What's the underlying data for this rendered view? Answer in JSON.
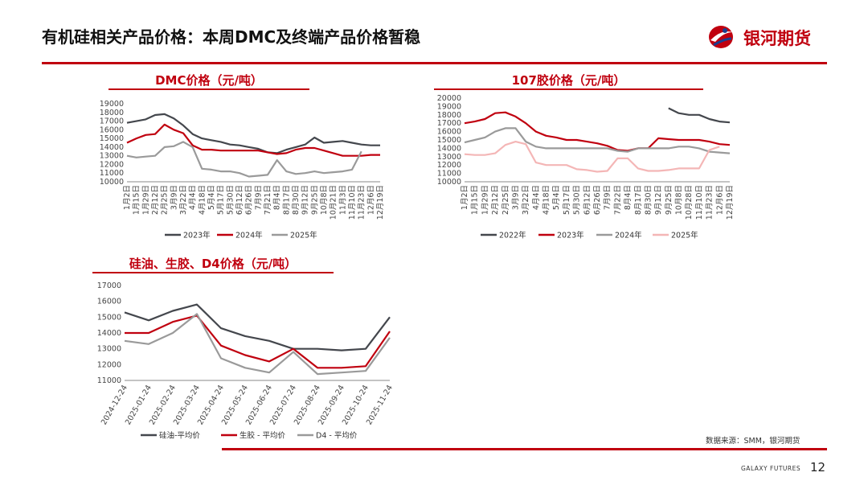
{
  "header": {
    "title": "有机硅相关产品价格：本周DMC及终端产品价格暂稳",
    "logo_text": "银河期货"
  },
  "colors": {
    "brand_red": "#c0000f",
    "dark_gray": "#44474d",
    "red": "#c0000f",
    "gray": "#9a9a9a",
    "pink": "#f4b6b6"
  },
  "footer": {
    "source": "数据来源：SMM，银河期货",
    "brand": "GALAXY FUTURES",
    "page": "12"
  },
  "chart_data": [
    {
      "id": "dmc",
      "type": "line",
      "title": "DMC价格（元/吨）",
      "ylim": [
        10000,
        19000
      ],
      "yticks": [
        10000,
        11000,
        12000,
        13000,
        14000,
        15000,
        16000,
        17000,
        18000,
        19000
      ],
      "categories": [
        "1月2日",
        "1月15日",
        "1月29日",
        "2月12日",
        "2月25日",
        "3月9日",
        "3月22日",
        "4月4日",
        "4月18日",
        "5月4日",
        "5月17日",
        "5月30日",
        "6月12日",
        "6月26日",
        "7月9日",
        "7月21日",
        "8月4日",
        "8月17日",
        "8月30日",
        "9月12日",
        "9月25日",
        "10月8日",
        "10月21日",
        "11月3日",
        "11月10日",
        "11月23日",
        "12月6日",
        "12月19日"
      ],
      "legend": [
        "2023年",
        "2024年",
        "2025年"
      ],
      "series": [
        {
          "name": "2023年",
          "color": "#44474d",
          "values": [
            16800,
            17000,
            17200,
            17700,
            17800,
            17300,
            16500,
            15500,
            15000,
            14800,
            14600,
            14300,
            14200,
            14000,
            13800,
            13400,
            13300,
            13700,
            14000,
            14300,
            15100,
            14500,
            14600,
            14700,
            14500,
            14300,
            14200,
            14200
          ]
        },
        {
          "name": "2024年",
          "color": "#c0000f",
          "values": [
            14500,
            15000,
            15400,
            15500,
            16600,
            16000,
            15600,
            14200,
            13700,
            13700,
            13600,
            13600,
            13600,
            13600,
            13600,
            13400,
            13200,
            13300,
            13700,
            13900,
            13900,
            13600,
            13300,
            13000,
            13000,
            13000,
            13100,
            13100
          ]
        },
        {
          "name": "2025年",
          "color": "#9a9a9a",
          "values": [
            13000,
            12800,
            12900,
            13000,
            14000,
            14100,
            14600,
            14000,
            11500,
            11400,
            11200,
            11200,
            11000,
            10600,
            10700,
            10800,
            12500,
            11200,
            10900,
            11000,
            11200,
            11000,
            11100,
            11200,
            11400,
            13500,
            null,
            null
          ]
        }
      ]
    },
    {
      "id": "glue107",
      "type": "line",
      "title": "107胶价格（元/吨）",
      "ylim": [
        10000,
        20000
      ],
      "yticks": [
        10000,
        11000,
        12000,
        13000,
        14000,
        15000,
        16000,
        17000,
        18000,
        19000,
        20000
      ],
      "categories": [
        "1月2日",
        "1月15日",
        "1月29日",
        "2月12日",
        "2月25日",
        "3月9日",
        "3月22日",
        "4月4日",
        "4月18日",
        "5月4日",
        "5月17日",
        "5月30日",
        "6月12日",
        "6月26日",
        "7月9日",
        "7月22日",
        "8月4日",
        "8月17日",
        "8月30日",
        "9月12日",
        "9月25日",
        "10月8日",
        "10月28日",
        "11月10日",
        "11月23日",
        "12月6日",
        "12月19日"
      ],
      "legend": [
        "2022年",
        "2023年",
        "2024年",
        "2025年"
      ],
      "series": [
        {
          "name": "2022年",
          "color": "#44474d",
          "values": [
            null,
            null,
            null,
            null,
            null,
            null,
            null,
            null,
            null,
            null,
            null,
            null,
            null,
            null,
            null,
            null,
            null,
            null,
            null,
            null,
            18800,
            18200,
            18000,
            18000,
            17500,
            17200,
            17100
          ]
        },
        {
          "name": "2023年",
          "color": "#c0000f",
          "values": [
            17000,
            17200,
            17500,
            18200,
            18300,
            17800,
            17000,
            16000,
            15500,
            15300,
            15000,
            15000,
            14800,
            14600,
            14300,
            13800,
            13700,
            14000,
            14000,
            15200,
            15100,
            15000,
            15000,
            15000,
            14800,
            14500,
            14400
          ]
        },
        {
          "name": "2024年",
          "color": "#9a9a9a",
          "values": [
            14700,
            15000,
            15300,
            16000,
            16400,
            16400,
            14800,
            14200,
            14000,
            14000,
            14000,
            14000,
            14000,
            14000,
            14000,
            13700,
            13600,
            14000,
            14000,
            14000,
            14000,
            14200,
            14200,
            14000,
            13600,
            13500,
            13400
          ]
        },
        {
          "name": "2025年",
          "color": "#f4b6b6",
          "values": [
            13300,
            13200,
            13200,
            13400,
            14400,
            14800,
            14500,
            12300,
            12000,
            12000,
            12000,
            11500,
            11400,
            11200,
            11300,
            12800,
            12800,
            11600,
            11300,
            11300,
            11400,
            11600,
            11600,
            11600,
            13800,
            14200,
            null
          ]
        }
      ]
    },
    {
      "id": "silicone",
      "type": "line",
      "title": "硅油、生胶、D4价格（元/吨）",
      "ylim": [
        11000,
        17000
      ],
      "yticks": [
        11000,
        12000,
        13000,
        14000,
        15000,
        16000,
        17000
      ],
      "categories": [
        "2024-12-24",
        "2025-01-24",
        "2025-02-24",
        "2025-03-24",
        "2025-04-24",
        "2025-05-24",
        "2025-06-24",
        "2025-07-24",
        "2025-08-24",
        "2025-09-24",
        "2025-10-24",
        "2025-11-24"
      ],
      "legend": [
        "硅油-平均价",
        "生胶 - 平均价",
        "D4 - 平均价"
      ],
      "series": [
        {
          "name": "硅油-平均价",
          "color": "#44474d",
          "values": [
            15300,
            14800,
            15400,
            15800,
            14300,
            13800,
            13500,
            13000,
            13000,
            12900,
            13000,
            15000
          ]
        },
        {
          "name": "生胶 - 平均价",
          "color": "#c0000f",
          "values": [
            14000,
            14000,
            14700,
            15100,
            13200,
            12600,
            12200,
            13000,
            11800,
            11800,
            11900,
            14100
          ]
        },
        {
          "name": "D4 - 平均价",
          "color": "#9a9a9a",
          "values": [
            13500,
            13300,
            14000,
            15200,
            12400,
            11800,
            11500,
            12800,
            11400,
            11500,
            11600,
            13700
          ]
        }
      ]
    }
  ]
}
